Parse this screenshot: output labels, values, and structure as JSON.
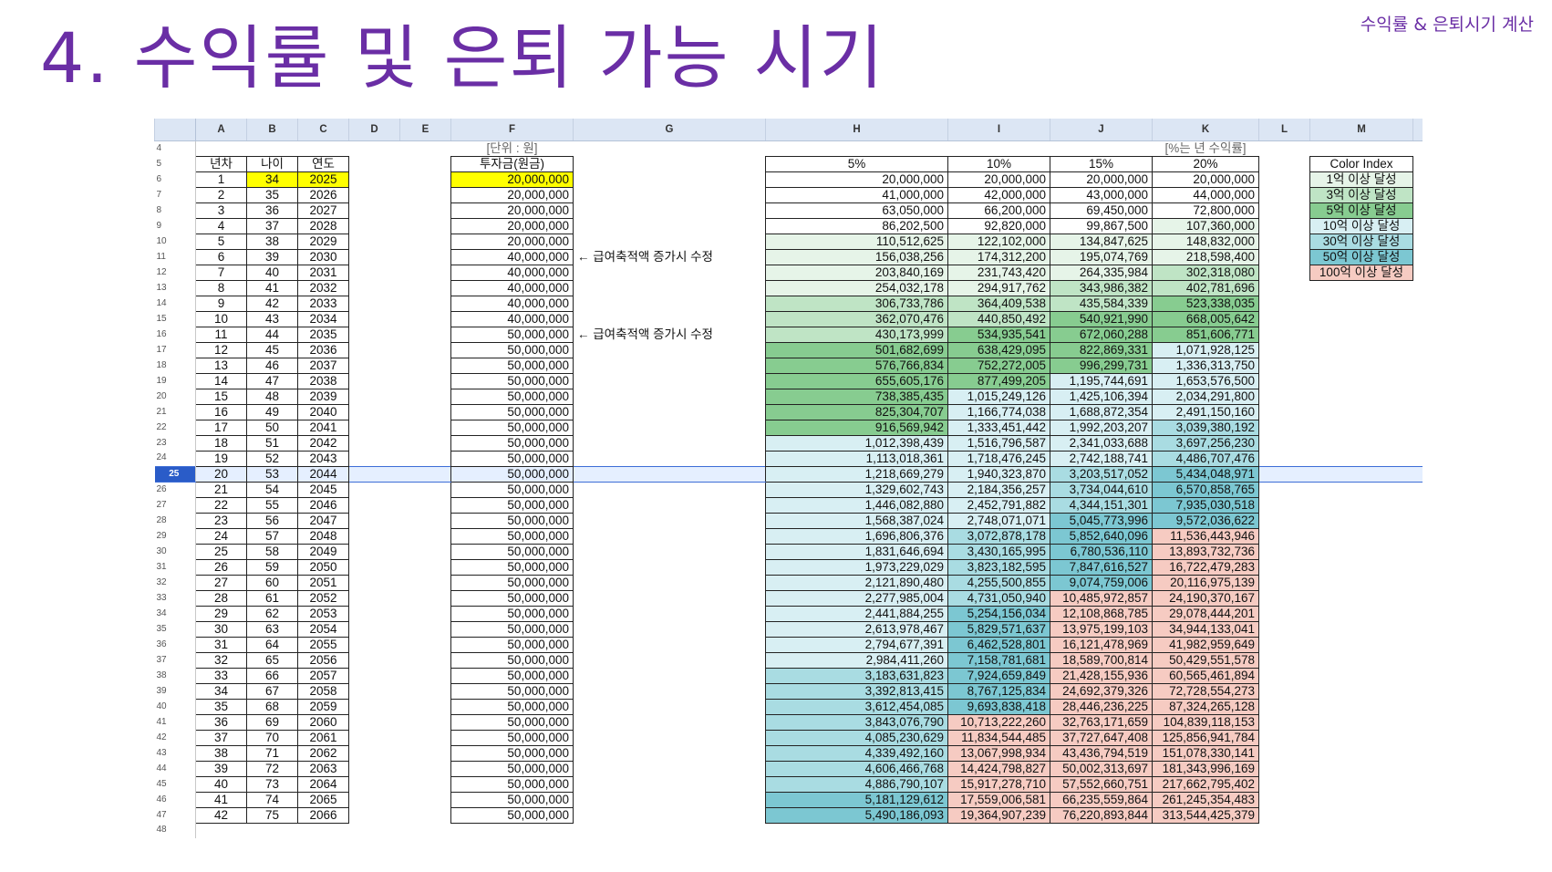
{
  "slide": {
    "title": "4. 수익률 및 은퇴 가능 시기",
    "corner_label": "수익률 & 은퇴시기 계산"
  },
  "sheet": {
    "column_letters": [
      "A",
      "B",
      "C",
      "D",
      "E",
      "F",
      "G",
      "H",
      "I",
      "J",
      "K",
      "L",
      "M"
    ],
    "unit_label": "[단위 : 원]",
    "rate_label": "[%는 년 수익률]",
    "headers": {
      "year_index": "년차",
      "age": "나이",
      "year": "연도",
      "investment": "투자금(원금)",
      "r5": "5%",
      "r10": "10%",
      "r15": "15%",
      "r20": "20%",
      "color_index": "Color Index"
    },
    "notes": {
      "row11": "← 급여축적액 증가시 수정",
      "row16": "← 급여축적액 증가시 수정"
    },
    "legend": [
      {
        "label": "1억 이상 달성",
        "color": "#e6f4e8"
      },
      {
        "label": "3억 이상 달성",
        "color": "#bfe4c5"
      },
      {
        "label": "5억 이상 달성",
        "color": "#87cc90"
      },
      {
        "label": "10억 이상 달성",
        "color": "#d8eff3"
      },
      {
        "label": "30억 이상 달성",
        "color": "#a9dce2"
      },
      {
        "label": "50억 이상 달성",
        "color": "#7cc7d2"
      },
      {
        "label": "100억 이상 달성",
        "color": "#f6cbc2"
      }
    ],
    "active_row": "25",
    "rows": [
      {
        "rn": "6",
        "n": "1",
        "age": "34",
        "yr": "2025",
        "inv": "20,000,000",
        "v5": "20,000,000",
        "v10": "20,000,000",
        "v15": "20,000,000",
        "v20": "20,000,000"
      },
      {
        "rn": "7",
        "n": "2",
        "age": "35",
        "yr": "2026",
        "inv": "20,000,000",
        "v5": "41,000,000",
        "v10": "42,000,000",
        "v15": "43,000,000",
        "v20": "44,000,000"
      },
      {
        "rn": "8",
        "n": "3",
        "age": "36",
        "yr": "2027",
        "inv": "20,000,000",
        "v5": "63,050,000",
        "v10": "66,200,000",
        "v15": "69,450,000",
        "v20": "72,800,000"
      },
      {
        "rn": "9",
        "n": "4",
        "age": "37",
        "yr": "2028",
        "inv": "20,000,000",
        "v5": "86,202,500",
        "v10": "92,820,000",
        "v15": "99,867,500",
        "v20": "107,360,000"
      },
      {
        "rn": "10",
        "n": "5",
        "age": "38",
        "yr": "2029",
        "inv": "20,000,000",
        "v5": "110,512,625",
        "v10": "122,102,000",
        "v15": "134,847,625",
        "v20": "148,832,000"
      },
      {
        "rn": "11",
        "n": "6",
        "age": "39",
        "yr": "2030",
        "inv": "40,000,000",
        "v5": "156,038,256",
        "v10": "174,312,200",
        "v15": "195,074,769",
        "v20": "218,598,400"
      },
      {
        "rn": "12",
        "n": "7",
        "age": "40",
        "yr": "2031",
        "inv": "40,000,000",
        "v5": "203,840,169",
        "v10": "231,743,420",
        "v15": "264,335,984",
        "v20": "302,318,080"
      },
      {
        "rn": "13",
        "n": "8",
        "age": "41",
        "yr": "2032",
        "inv": "40,000,000",
        "v5": "254,032,178",
        "v10": "294,917,762",
        "v15": "343,986,382",
        "v20": "402,781,696"
      },
      {
        "rn": "14",
        "n": "9",
        "age": "42",
        "yr": "2033",
        "inv": "40,000,000",
        "v5": "306,733,786",
        "v10": "364,409,538",
        "v15": "435,584,339",
        "v20": "523,338,035"
      },
      {
        "rn": "15",
        "n": "10",
        "age": "43",
        "yr": "2034",
        "inv": "40,000,000",
        "v5": "362,070,476",
        "v10": "440,850,492",
        "v15": "540,921,990",
        "v20": "668,005,642"
      },
      {
        "rn": "16",
        "n": "11",
        "age": "44",
        "yr": "2035",
        "inv": "50,000,000",
        "v5": "430,173,999",
        "v10": "534,935,541",
        "v15": "672,060,288",
        "v20": "851,606,771"
      },
      {
        "rn": "17",
        "n": "12",
        "age": "45",
        "yr": "2036",
        "inv": "50,000,000",
        "v5": "501,682,699",
        "v10": "638,429,095",
        "v15": "822,869,331",
        "v20": "1,071,928,125"
      },
      {
        "rn": "18",
        "n": "13",
        "age": "46",
        "yr": "2037",
        "inv": "50,000,000",
        "v5": "576,766,834",
        "v10": "752,272,005",
        "v15": "996,299,731",
        "v20": "1,336,313,750"
      },
      {
        "rn": "19",
        "n": "14",
        "age": "47",
        "yr": "2038",
        "inv": "50,000,000",
        "v5": "655,605,176",
        "v10": "877,499,205",
        "v15": "1,195,744,691",
        "v20": "1,653,576,500"
      },
      {
        "rn": "20",
        "n": "15",
        "age": "48",
        "yr": "2039",
        "inv": "50,000,000",
        "v5": "738,385,435",
        "v10": "1,015,249,126",
        "v15": "1,425,106,394",
        "v20": "2,034,291,800"
      },
      {
        "rn": "21",
        "n": "16",
        "age": "49",
        "yr": "2040",
        "inv": "50,000,000",
        "v5": "825,304,707",
        "v10": "1,166,774,038",
        "v15": "1,688,872,354",
        "v20": "2,491,150,160"
      },
      {
        "rn": "22",
        "n": "17",
        "age": "50",
        "yr": "2041",
        "inv": "50,000,000",
        "v5": "916,569,942",
        "v10": "1,333,451,442",
        "v15": "1,992,203,207",
        "v20": "3,039,380,192"
      },
      {
        "rn": "23",
        "n": "18",
        "age": "51",
        "yr": "2042",
        "inv": "50,000,000",
        "v5": "1,012,398,439",
        "v10": "1,516,796,587",
        "v15": "2,341,033,688",
        "v20": "3,697,256,230"
      },
      {
        "rn": "24",
        "n": "19",
        "age": "52",
        "yr": "2043",
        "inv": "50,000,000",
        "v5": "1,113,018,361",
        "v10": "1,718,476,245",
        "v15": "2,742,188,741",
        "v20": "4,486,707,476"
      },
      {
        "rn": "25",
        "n": "20",
        "age": "53",
        "yr": "2044",
        "inv": "50,000,000",
        "v5": "1,218,669,279",
        "v10": "1,940,323,870",
        "v15": "3,203,517,052",
        "v20": "5,434,048,971"
      },
      {
        "rn": "26",
        "n": "21",
        "age": "54",
        "yr": "2045",
        "inv": "50,000,000",
        "v5": "1,329,602,743",
        "v10": "2,184,356,257",
        "v15": "3,734,044,610",
        "v20": "6,570,858,765"
      },
      {
        "rn": "27",
        "n": "22",
        "age": "55",
        "yr": "2046",
        "inv": "50,000,000",
        "v5": "1,446,082,880",
        "v10": "2,452,791,882",
        "v15": "4,344,151,301",
        "v20": "7,935,030,518"
      },
      {
        "rn": "28",
        "n": "23",
        "age": "56",
        "yr": "2047",
        "inv": "50,000,000",
        "v5": "1,568,387,024",
        "v10": "2,748,071,071",
        "v15": "5,045,773,996",
        "v20": "9,572,036,622"
      },
      {
        "rn": "29",
        "n": "24",
        "age": "57",
        "yr": "2048",
        "inv": "50,000,000",
        "v5": "1,696,806,376",
        "v10": "3,072,878,178",
        "v15": "5,852,640,096",
        "v20": "11,536,443,946"
      },
      {
        "rn": "30",
        "n": "25",
        "age": "58",
        "yr": "2049",
        "inv": "50,000,000",
        "v5": "1,831,646,694",
        "v10": "3,430,165,995",
        "v15": "6,780,536,110",
        "v20": "13,893,732,736"
      },
      {
        "rn": "31",
        "n": "26",
        "age": "59",
        "yr": "2050",
        "inv": "50,000,000",
        "v5": "1,973,229,029",
        "v10": "3,823,182,595",
        "v15": "7,847,616,527",
        "v20": "16,722,479,283"
      },
      {
        "rn": "32",
        "n": "27",
        "age": "60",
        "yr": "2051",
        "inv": "50,000,000",
        "v5": "2,121,890,480",
        "v10": "4,255,500,855",
        "v15": "9,074,759,006",
        "v20": "20,116,975,139"
      },
      {
        "rn": "33",
        "n": "28",
        "age": "61",
        "yr": "2052",
        "inv": "50,000,000",
        "v5": "2,277,985,004",
        "v10": "4,731,050,940",
        "v15": "10,485,972,857",
        "v20": "24,190,370,167"
      },
      {
        "rn": "34",
        "n": "29",
        "age": "62",
        "yr": "2053",
        "inv": "50,000,000",
        "v5": "2,441,884,255",
        "v10": "5,254,156,034",
        "v15": "12,108,868,785",
        "v20": "29,078,444,201"
      },
      {
        "rn": "35",
        "n": "30",
        "age": "63",
        "yr": "2054",
        "inv": "50,000,000",
        "v5": "2,613,978,467",
        "v10": "5,829,571,637",
        "v15": "13,975,199,103",
        "v20": "34,944,133,041"
      },
      {
        "rn": "36",
        "n": "31",
        "age": "64",
        "yr": "2055",
        "inv": "50,000,000",
        "v5": "2,794,677,391",
        "v10": "6,462,528,801",
        "v15": "16,121,478,969",
        "v20": "41,982,959,649"
      },
      {
        "rn": "37",
        "n": "32",
        "age": "65",
        "yr": "2056",
        "inv": "50,000,000",
        "v5": "2,984,411,260",
        "v10": "7,158,781,681",
        "v15": "18,589,700,814",
        "v20": "50,429,551,578"
      },
      {
        "rn": "38",
        "n": "33",
        "age": "66",
        "yr": "2057",
        "inv": "50,000,000",
        "v5": "3,183,631,823",
        "v10": "7,924,659,849",
        "v15": "21,428,155,936",
        "v20": "60,565,461,894"
      },
      {
        "rn": "39",
        "n": "34",
        "age": "67",
        "yr": "2058",
        "inv": "50,000,000",
        "v5": "3,392,813,415",
        "v10": "8,767,125,834",
        "v15": "24,692,379,326",
        "v20": "72,728,554,273"
      },
      {
        "rn": "40",
        "n": "35",
        "age": "68",
        "yr": "2059",
        "inv": "50,000,000",
        "v5": "3,612,454,085",
        "v10": "9,693,838,418",
        "v15": "28,446,236,225",
        "v20": "87,324,265,128"
      },
      {
        "rn": "41",
        "n": "36",
        "age": "69",
        "yr": "2060",
        "inv": "50,000,000",
        "v5": "3,843,076,790",
        "v10": "10,713,222,260",
        "v15": "32,763,171,659",
        "v20": "104,839,118,153"
      },
      {
        "rn": "42",
        "n": "37",
        "age": "70",
        "yr": "2061",
        "inv": "50,000,000",
        "v5": "4,085,230,629",
        "v10": "11,834,544,485",
        "v15": "37,727,647,408",
        "v20": "125,856,941,784"
      },
      {
        "rn": "43",
        "n": "38",
        "age": "71",
        "yr": "2062",
        "inv": "50,000,000",
        "v5": "4,339,492,160",
        "v10": "13,067,998,934",
        "v15": "43,436,794,519",
        "v20": "151,078,330,141"
      },
      {
        "rn": "44",
        "n": "39",
        "age": "72",
        "yr": "2063",
        "inv": "50,000,000",
        "v5": "4,606,466,768",
        "v10": "14,424,798,827",
        "v15": "50,002,313,697",
        "v20": "181,343,996,169"
      },
      {
        "rn": "45",
        "n": "40",
        "age": "73",
        "yr": "2064",
        "inv": "50,000,000",
        "v5": "4,886,790,107",
        "v10": "15,917,278,710",
        "v15": "57,552,660,751",
        "v20": "217,662,795,402"
      },
      {
        "rn": "46",
        "n": "41",
        "age": "74",
        "yr": "2065",
        "inv": "50,000,000",
        "v5": "5,181,129,612",
        "v10": "17,559,006,581",
        "v15": "66,235,559,864",
        "v20": "261,245,354,483"
      },
      {
        "rn": "47",
        "n": "42",
        "age": "75",
        "yr": "2066",
        "inv": "50,000,000",
        "v5": "5,490,186,093",
        "v10": "19,364,907,239",
        "v15": "76,220,893,844",
        "v20": "313,544,425,379"
      }
    ]
  }
}
